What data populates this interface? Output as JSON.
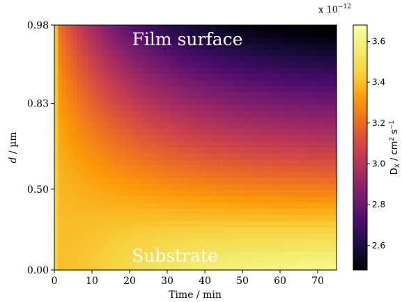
{
  "chart_data": {
    "type": "heatmap",
    "xlabel": "Time / min",
    "ylabel_italic": "d",
    "ylabel_rest": " / µm",
    "x_ticks": [
      "0",
      "10",
      "20",
      "30",
      "40",
      "50",
      "60",
      "70"
    ],
    "x_tick_values": [
      0,
      10,
      20,
      30,
      40,
      50,
      60,
      70
    ],
    "xlim": [
      0,
      75
    ],
    "y_ticks": [
      "0.98",
      "0.83",
      "0.50",
      "0.00"
    ],
    "y_tick_values": [
      0.98,
      0.83,
      0.5,
      0.0
    ],
    "annotations": {
      "top": "Film surface",
      "bottom": "Substrate"
    },
    "colorbar": {
      "colormap": "inferno",
      "range": [
        2.48,
        3.68
      ],
      "ticks": [
        "2.6",
        "2.8",
        "3.0",
        "3.2",
        "3.4",
        "3.6"
      ],
      "tick_values": [
        2.6,
        2.8,
        3.0,
        3.2,
        3.4,
        3.6
      ],
      "offset_prefix": "x 10",
      "offset_exponent": "−12",
      "label_main": "D",
      "label_sub": "X",
      "label_unit1": " / cm",
      "label_sup1": "2",
      "label_unit2": " s",
      "label_sup2": "−1"
    },
    "grid_shape": {
      "rows": 40,
      "cols": 75
    },
    "description_of_field": {
      "surface_value_late": 2.5,
      "substrate_value_late": 3.65,
      "initial_value": 3.4
    }
  }
}
